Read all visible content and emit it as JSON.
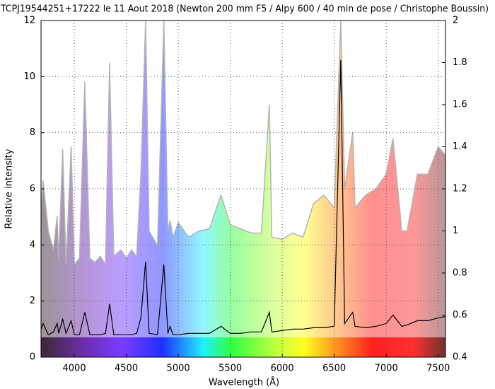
{
  "chart_data": {
    "type": "spectrum",
    "title": "TCPJ19544251+17222 le 11 Aout 2018 (Newton 200 mm F5 / Alpy 600 / 40 min de pose / Christophe Boussin)",
    "x_label": "Wavelength (Å)",
    "y_label": "Relative intensity",
    "x": [
      3680,
      3700,
      3750,
      3800,
      3835,
      3850,
      3889,
      3920,
      3970,
      4000,
      4050,
      4101,
      4150,
      4200,
      4250,
      4300,
      4340,
      4380,
      4450,
      4500,
      4550,
      4600,
      4640,
      4686,
      4720,
      4800,
      4861,
      4900,
      4921,
      4950,
      5000,
      5100,
      5200,
      5300,
      5411,
      5500,
      5600,
      5700,
      5800,
      5876,
      5900,
      6000,
      6100,
      6200,
      6300,
      6400,
      6500,
      6563,
      6600,
      6678,
      6700,
      6800,
      6900,
      7000,
      7065,
      7150,
      7200,
      7300,
      7400,
      7500,
      7570
    ],
    "series": [
      {
        "color": "#b4b4b4",
        "axis": "y2",
        "values": [
          1.13,
          1.24,
          1.0,
          0.91,
          1.07,
          0.87,
          1.39,
          0.84,
          1.4,
          0.84,
          0.87,
          1.71,
          0.87,
          0.85,
          0.88,
          0.84,
          1.8,
          0.88,
          0.91,
          0.87,
          0.91,
          0.88,
          1.27,
          2.0,
          1.0,
          0.93,
          2.0,
          1.0,
          1.05,
          0.97,
          1.04,
          0.97,
          1.0,
          1.01,
          1.17,
          1.03,
          1.01,
          0.99,
          0.99,
          1.6,
          0.97,
          0.96,
          0.99,
          0.97,
          1.13,
          1.17,
          1.11,
          2.0,
          1.2,
          1.47,
          1.11,
          1.17,
          1.2,
          1.27,
          1.44,
          1.0,
          1.0,
          1.27,
          1.27,
          1.4,
          1.36
        ]
      },
      {
        "color": "#000000",
        "values": [
          1.0,
          1.2,
          0.8,
          0.9,
          1.2,
          0.85,
          1.35,
          0.85,
          1.3,
          0.8,
          0.8,
          1.6,
          0.8,
          0.8,
          0.8,
          0.85,
          1.9,
          0.8,
          0.8,
          0.8,
          0.8,
          0.85,
          1.4,
          3.4,
          0.85,
          0.8,
          3.3,
          0.85,
          1.1,
          0.8,
          0.8,
          0.85,
          0.85,
          0.85,
          1.1,
          0.85,
          0.85,
          0.9,
          0.9,
          1.6,
          0.9,
          0.95,
          1.0,
          1.0,
          1.05,
          1.05,
          1.1,
          10.6,
          1.2,
          1.6,
          1.1,
          1.05,
          1.1,
          1.2,
          1.5,
          1.1,
          1.15,
          1.3,
          1.3,
          1.4,
          1.45
        ]
      }
    ],
    "xlim": [
      3680,
      7570
    ],
    "xticks": [
      4000,
      4500,
      5000,
      5500,
      6000,
      6500,
      7000,
      7500
    ],
    "ylim": [
      0,
      12
    ],
    "yticks": [
      0,
      2,
      4,
      6,
      8,
      10,
      12
    ],
    "y2lim": [
      0.4,
      2
    ],
    "y2ticks": [
      0.4,
      0.6,
      0.8,
      1,
      1.2,
      1.4,
      1.6,
      1.8,
      2
    ],
    "grid": true
  }
}
